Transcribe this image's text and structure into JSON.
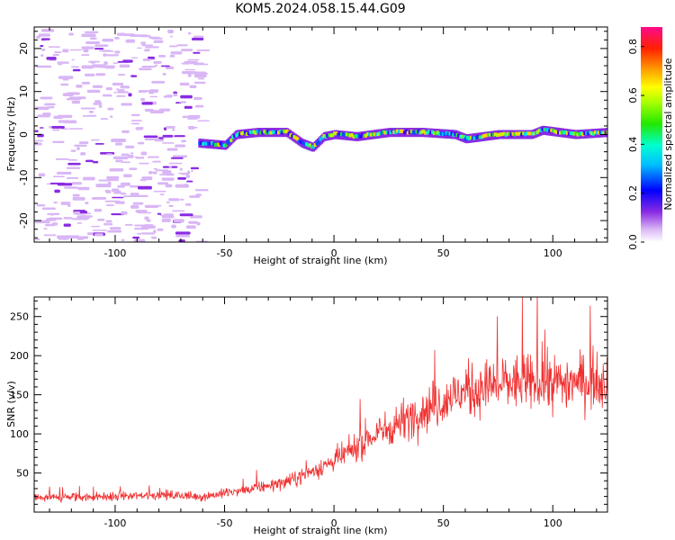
{
  "figure_title": "KOM5.2024.058.15.44.G09",
  "colors": {
    "snr_line": "#f03030",
    "spectrogram_low": "#d9b6f5",
    "spectrogram_mid": "#8a2be2"
  },
  "chart_data": [
    {
      "type": "heatmap",
      "xlabel": "Height of straight line (km)",
      "ylabel": "Frequency (Hz)",
      "xlim": [
        -137,
        125
      ],
      "ylim": [
        -25,
        25
      ],
      "x_ticks": [
        -100,
        -50,
        0,
        50,
        100
      ],
      "y_ticks": [
        -20,
        -10,
        0,
        10,
        20
      ],
      "x_tick_labels": [
        "-100",
        "-50",
        "0",
        "50",
        "100"
      ],
      "y_tick_labels": [
        "-20",
        "-10",
        "0",
        "10",
        "20"
      ],
      "signal_ridge": {
        "x": [
          -62,
          -50,
          -45,
          -35,
          -22,
          -15,
          -10,
          -5,
          0,
          10,
          25,
          40,
          55,
          60,
          75,
          90,
          95,
          110,
          125
        ],
        "y": [
          -2,
          -2.5,
          0,
          0.5,
          0.5,
          -2,
          -3,
          -0.5,
          0,
          -0.5,
          0.5,
          0.5,
          0,
          -1,
          0,
          0,
          1,
          0,
          0.5
        ]
      },
      "noise_region": {
        "x": [
          -137,
          -62
        ],
        "y": [
          -25,
          25
        ]
      },
      "colorbar": {
        "label": "Normalized spectral amplitude",
        "range": [
          0,
          0.88
        ],
        "ticks": [
          0.0,
          0.2,
          0.4,
          0.6,
          0.8
        ],
        "tick_labels": [
          "0.0",
          "0.2",
          "0.4",
          "0.6",
          "0.8"
        ]
      }
    },
    {
      "type": "line",
      "xlabel": "Height of straight line (km)",
      "ylabel": "SNR (v/v)",
      "xlim": [
        -137,
        125
      ],
      "ylim": [
        0,
        275
      ],
      "x_ticks": [
        -100,
        -50,
        0,
        50,
        100
      ],
      "y_ticks": [
        50,
        100,
        150,
        200,
        250
      ],
      "x_tick_labels": [
        "-100",
        "-50",
        "0",
        "50",
        "100"
      ],
      "y_tick_labels": [
        "50",
        "100",
        "150",
        "200",
        "250"
      ],
      "trend": {
        "x": [
          -137,
          -100,
          -80,
          -60,
          -40,
          -20,
          0,
          20,
          40,
          60,
          80,
          100,
          125
        ],
        "y": [
          18,
          20,
          22,
          20,
          28,
          40,
          65,
          100,
          130,
          155,
          165,
          165,
          170
        ]
      }
    }
  ]
}
